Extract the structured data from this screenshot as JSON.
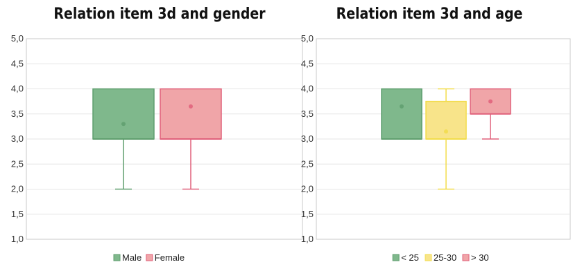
{
  "chart_data": [
    {
      "type": "box",
      "title": "Relation item 3d and gender",
      "ylim": [
        1.0,
        5.0
      ],
      "yticks": [
        "1,0",
        "1,5",
        "2,0",
        "2,5",
        "3,0",
        "3,5",
        "4,0",
        "4,5",
        "5,0"
      ],
      "grid": true,
      "legend_position": "bottom",
      "series": [
        {
          "name": "Male",
          "color": "#5f9e6e",
          "fill": "#7fb88c",
          "min": 2.0,
          "q1": 3.0,
          "median": 3.0,
          "q3": 4.0,
          "max": 4.0,
          "mean": 3.3
        },
        {
          "name": "Female",
          "color": "#e0607a",
          "fill": "#f0a5a8",
          "min": 2.0,
          "q1": 3.0,
          "median": 3.0,
          "q3": 4.0,
          "max": 4.0,
          "mean": 3.65
        }
      ]
    },
    {
      "type": "box",
      "title": "Relation item 3d and age",
      "ylim": [
        1.0,
        5.0
      ],
      "yticks": [
        "1,0",
        "1,5",
        "2,0",
        "2,5",
        "3,0",
        "3,5",
        "4,0",
        "4,5",
        "5,0"
      ],
      "grid": true,
      "legend_position": "bottom",
      "series": [
        {
          "name": "< 25",
          "color": "#5f9e6e",
          "fill": "#7fb88c",
          "min": 3.0,
          "q1": 3.0,
          "median": 3.0,
          "q3": 4.0,
          "max": 4.0,
          "mean": 3.65
        },
        {
          "name": "25-30",
          "color": "#f2dc4a",
          "fill": "#f8e48a",
          "min": 2.0,
          "q1": 3.0,
          "median": 3.0,
          "q3": 3.75,
          "max": 4.0,
          "mean": 3.15
        },
        {
          "name": "> 30",
          "color": "#e0607a",
          "fill": "#f0a5a8",
          "min": 3.0,
          "q1": 3.5,
          "median": 3.5,
          "q3": 4.0,
          "max": 4.0,
          "mean": 3.75
        }
      ]
    }
  ]
}
